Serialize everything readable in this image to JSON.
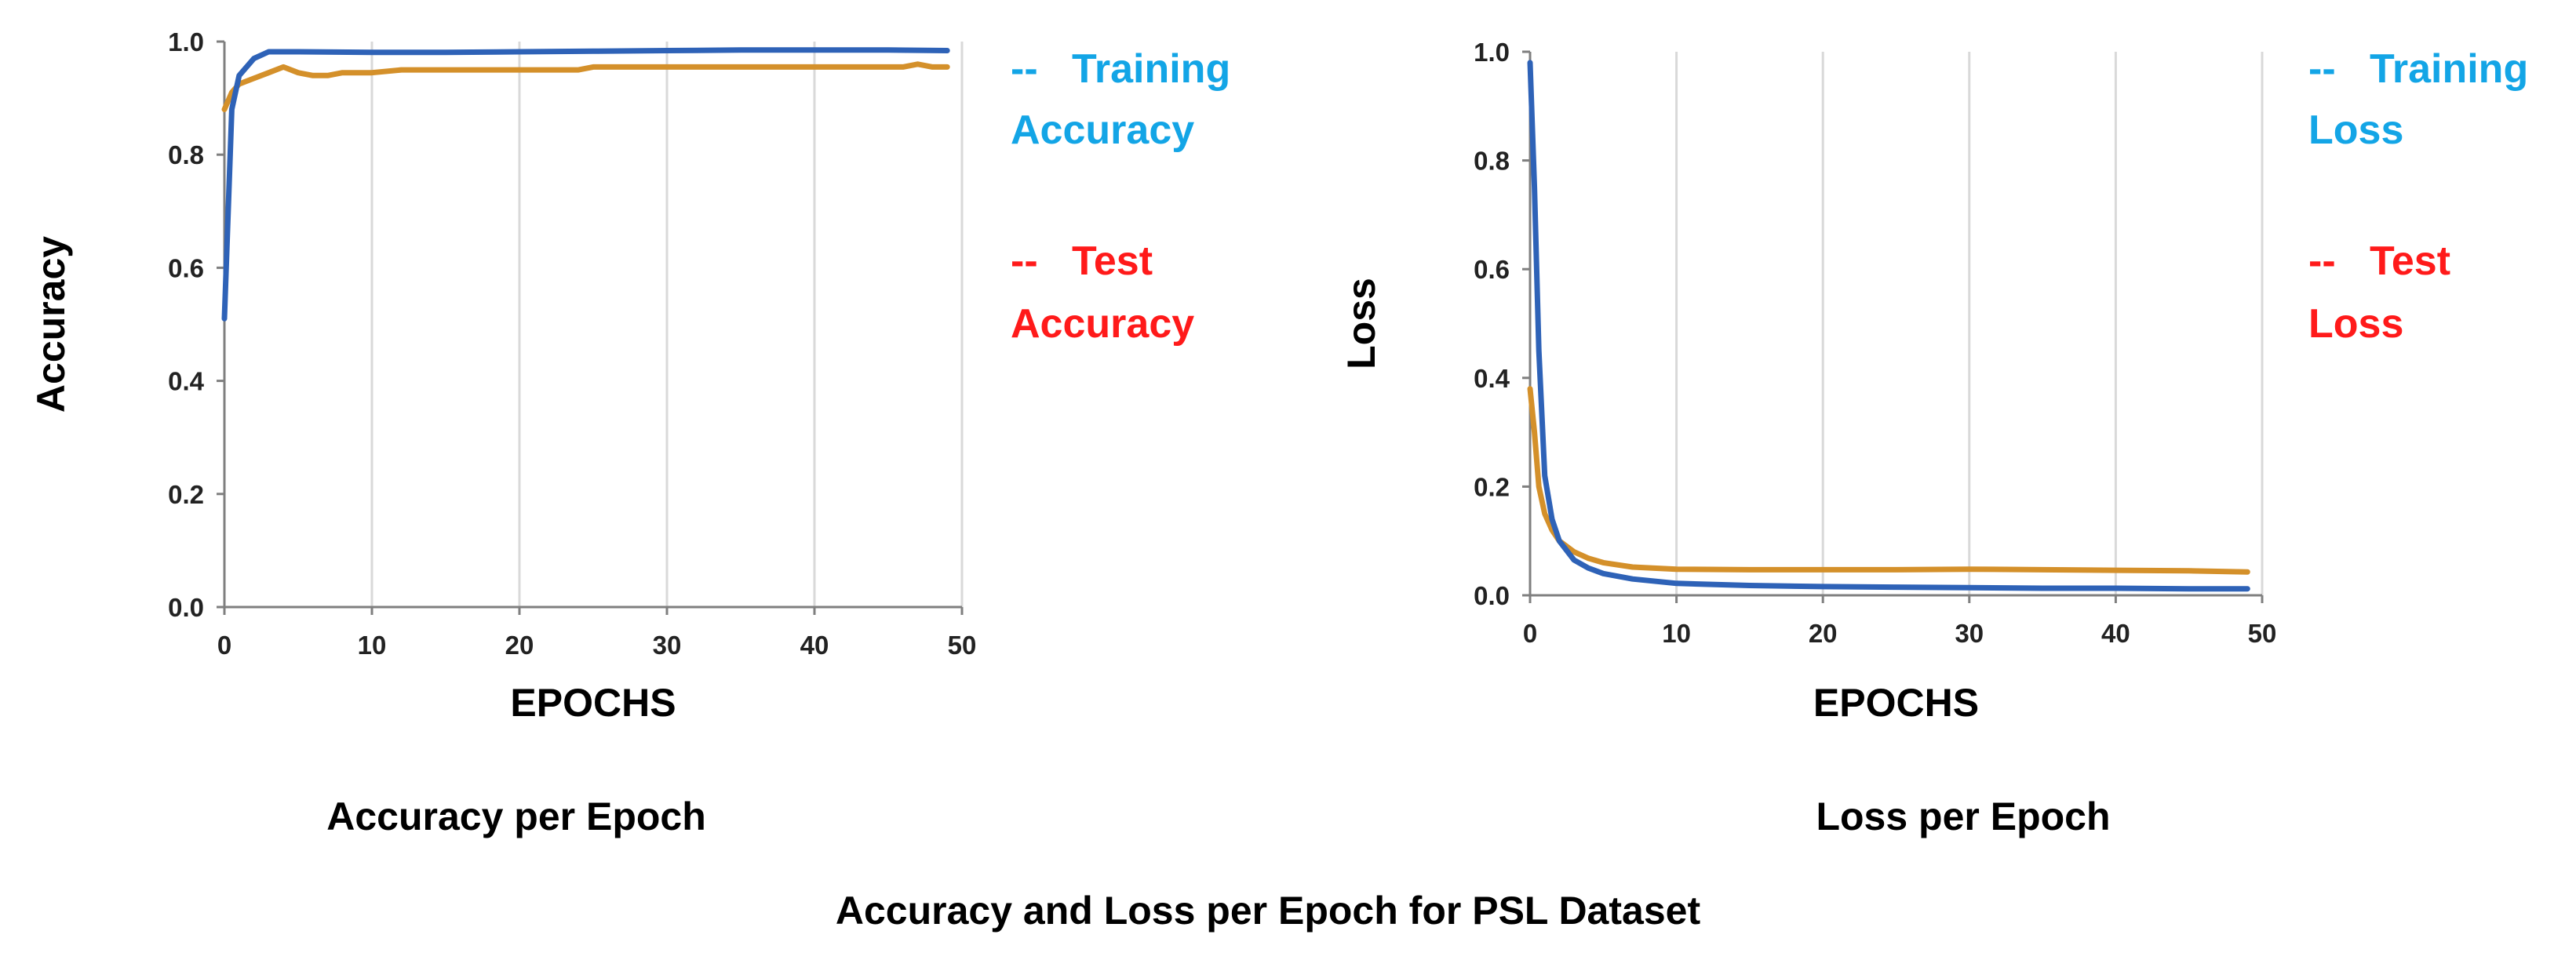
{
  "figure_caption": "Accuracy and Loss per Epoch for PSL Dataset",
  "colors": {
    "training": "#2e62b7",
    "test": "#d4902a",
    "training_legend": "#13a5e6",
    "test_legend": "#ff1a1a",
    "grid": "#d9d9d9",
    "axis": "#7f7f7f"
  },
  "chart_data": [
    {
      "type": "line",
      "caption": "Accuracy per Epoch",
      "xlabel": "EPOCHS",
      "ylabel": "Accuracy",
      "xlim": [
        0,
        50
      ],
      "ylim": [
        0,
        1.0
      ],
      "xticks": [
        0,
        10,
        20,
        30,
        40,
        50
      ],
      "yticks": [
        0.0,
        0.2,
        0.4,
        0.6,
        0.8,
        1.0
      ],
      "grid": "vertical",
      "legend_position": "right",
      "series": [
        {
          "name": "-- Training Accuracy",
          "legend_line1": "--   Training",
          "legend_line2": "Accuracy",
          "x": [
            0,
            0.5,
            1,
            2,
            3,
            4,
            5,
            10,
            15,
            20,
            25,
            30,
            35,
            40,
            45,
            49
          ],
          "y": [
            0.51,
            0.88,
            0.94,
            0.97,
            0.982,
            0.982,
            0.982,
            0.981,
            0.981,
            0.982,
            0.983,
            0.984,
            0.985,
            0.985,
            0.985,
            0.984
          ]
        },
        {
          "name": "-- Test Accuracy",
          "legend_line1": "--   Test",
          "legend_line2": "Accuracy",
          "x": [
            0,
            0.5,
            1,
            2,
            3,
            4,
            5,
            6,
            7,
            8,
            9,
            10,
            12,
            15,
            20,
            24,
            25,
            30,
            35,
            40,
            45,
            46,
            47,
            48,
            49
          ],
          "y": [
            0.88,
            0.91,
            0.925,
            0.935,
            0.945,
            0.955,
            0.945,
            0.94,
            0.94,
            0.945,
            0.945,
            0.945,
            0.95,
            0.95,
            0.95,
            0.95,
            0.955,
            0.955,
            0.955,
            0.955,
            0.955,
            0.955,
            0.96,
            0.955,
            0.955
          ]
        }
      ]
    },
    {
      "type": "line",
      "caption": "Loss per Epoch",
      "xlabel": "EPOCHS",
      "ylabel": "Loss",
      "xlim": [
        0,
        50
      ],
      "ylim": [
        0,
        1.0
      ],
      "xticks": [
        0,
        10,
        20,
        30,
        40,
        50
      ],
      "yticks": [
        0.0,
        0.2,
        0.4,
        0.6,
        0.8,
        1.0
      ],
      "grid": "vertical",
      "legend_position": "right",
      "series": [
        {
          "name": "-- Training Loss",
          "legend_line1": "--   Training",
          "legend_line2": "Loss",
          "x": [
            0,
            0.3,
            0.6,
            1,
            1.5,
            2,
            3,
            4,
            5,
            7,
            10,
            15,
            20,
            25,
            30,
            35,
            40,
            45,
            49
          ],
          "y": [
            0.98,
            0.75,
            0.45,
            0.22,
            0.14,
            0.1,
            0.065,
            0.05,
            0.04,
            0.03,
            0.022,
            0.018,
            0.016,
            0.015,
            0.014,
            0.013,
            0.013,
            0.012,
            0.012
          ]
        },
        {
          "name": "-- Test Loss",
          "legend_line1": "--   Test",
          "legend_line2": "Loss",
          "x": [
            0,
            0.3,
            0.6,
            1,
            1.5,
            2,
            3,
            4,
            5,
            7,
            10,
            15,
            20,
            25,
            30,
            35,
            40,
            45,
            49
          ],
          "y": [
            0.38,
            0.3,
            0.2,
            0.15,
            0.12,
            0.1,
            0.08,
            0.068,
            0.06,
            0.052,
            0.048,
            0.047,
            0.047,
            0.047,
            0.048,
            0.047,
            0.046,
            0.045,
            0.043
          ]
        }
      ]
    }
  ]
}
